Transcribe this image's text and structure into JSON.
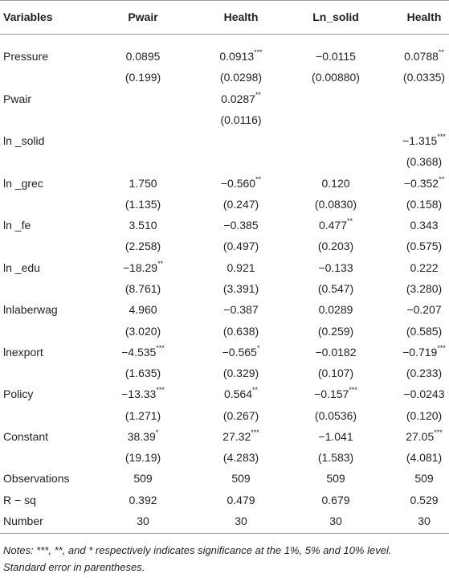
{
  "table": {
    "header": [
      "Variables",
      "Pwair",
      "Health",
      "Ln_solid",
      "Health"
    ],
    "rows": [
      {
        "label": "Pressure",
        "coef": [
          "0.0895",
          "0.0913***",
          "−0.0115",
          "0.0788**"
        ],
        "se": [
          "(0.199)",
          "(0.0298)",
          "(0.00880)",
          "(0.0335)"
        ]
      },
      {
        "label": "Pwair",
        "coef": [
          null,
          "0.0287**",
          null,
          null
        ],
        "se": [
          null,
          "(0.0116)",
          null,
          null
        ]
      },
      {
        "label": "ln _solid",
        "coef": [
          null,
          null,
          null,
          "−1.315***"
        ],
        "se": [
          null,
          null,
          null,
          "(0.368)"
        ]
      },
      {
        "label": "ln _grec",
        "coef": [
          "1.750",
          "−0.560**",
          "0.120",
          "−0.352**"
        ],
        "se": [
          "(1.135)",
          "(0.247)",
          "(0.0830)",
          "(0.158)"
        ]
      },
      {
        "label": "ln _fe",
        "coef": [
          "3.510",
          "−0.385",
          "0.477**",
          "0.343"
        ],
        "se": [
          "(2.258)",
          "(0.497)",
          "(0.203)",
          "(0.575)"
        ]
      },
      {
        "label": "ln _edu",
        "coef": [
          "−18.29**",
          "0.921",
          "−0.133",
          "0.222"
        ],
        "se": [
          "(8.761)",
          "(3.391)",
          "(0.547)",
          "(3.280)"
        ]
      },
      {
        "label": "lnlaberwag",
        "coef": [
          "4.960",
          "−0.387",
          "0.0289",
          "−0.207"
        ],
        "se": [
          "(3.020)",
          "(0.638)",
          "(0.259)",
          "(0.585)"
        ]
      },
      {
        "label": "lnexport",
        "coef": [
          "−4.535***",
          "−0.565*",
          "−0.0182",
          "−0.719***"
        ],
        "se": [
          "(1.635)",
          "(0.329)",
          "(0.107)",
          "(0.233)"
        ]
      },
      {
        "label": "Policy",
        "coef": [
          "−13.33***",
          "0.564**",
          "−0.157***",
          "−0.0243"
        ],
        "se": [
          "(1.271)",
          "(0.267)",
          "(0.0536)",
          "(0.120)"
        ]
      },
      {
        "label": "Constant",
        "coef": [
          "38.39*",
          "27.32***",
          "−1.041",
          "27.05***"
        ],
        "se": [
          "(19.19)",
          "(4.283)",
          "(1.583)",
          "(4.081)"
        ]
      }
    ],
    "stats": [
      {
        "label": "Observations",
        "values": [
          "509",
          "509",
          "509",
          "509"
        ]
      },
      {
        "label": "R − sq",
        "values": [
          "0.392",
          "0.479",
          "0.679",
          "0.529"
        ]
      },
      {
        "label": "Number",
        "values": [
          "30",
          "30",
          "30",
          "30"
        ]
      }
    ],
    "notes": [
      "Notes: ***, **, and * respectively indicates significance at the 1%, 5% and 10% level.",
      "Standard error in parentheses."
    ]
  }
}
